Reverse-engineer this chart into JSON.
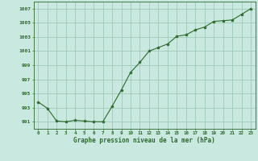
{
  "x": [
    0,
    1,
    2,
    3,
    4,
    5,
    6,
    7,
    8,
    9,
    10,
    11,
    12,
    13,
    14,
    15,
    16,
    17,
    18,
    19,
    20,
    21,
    22,
    23
  ],
  "y": [
    993.8,
    992.9,
    991.1,
    991.0,
    991.2,
    991.1,
    991.0,
    991.0,
    993.2,
    995.5,
    998.0,
    999.4,
    1001.0,
    1001.5,
    1002.0,
    1003.1,
    1003.3,
    1004.0,
    1004.4,
    1005.2,
    1005.3,
    1005.4,
    1006.2,
    1007.0
  ],
  "line_color": "#2d6a2d",
  "marker": "*",
  "marker_color": "#2d6a2d",
  "bg_color": "#c8e8e0",
  "grid_color": "#98c4b0",
  "xlabel": "Graphe pression niveau de la mer (hPa)",
  "xlabel_color": "#2d6a2d",
  "ylabel_ticks": [
    991,
    993,
    995,
    997,
    999,
    1001,
    1003,
    1005,
    1007
  ],
  "ylim": [
    990.0,
    1008.0
  ],
  "xlim": [
    -0.5,
    23.5
  ],
  "tick_color": "#2d6a2d",
  "spine_color": "#2d6a2d"
}
